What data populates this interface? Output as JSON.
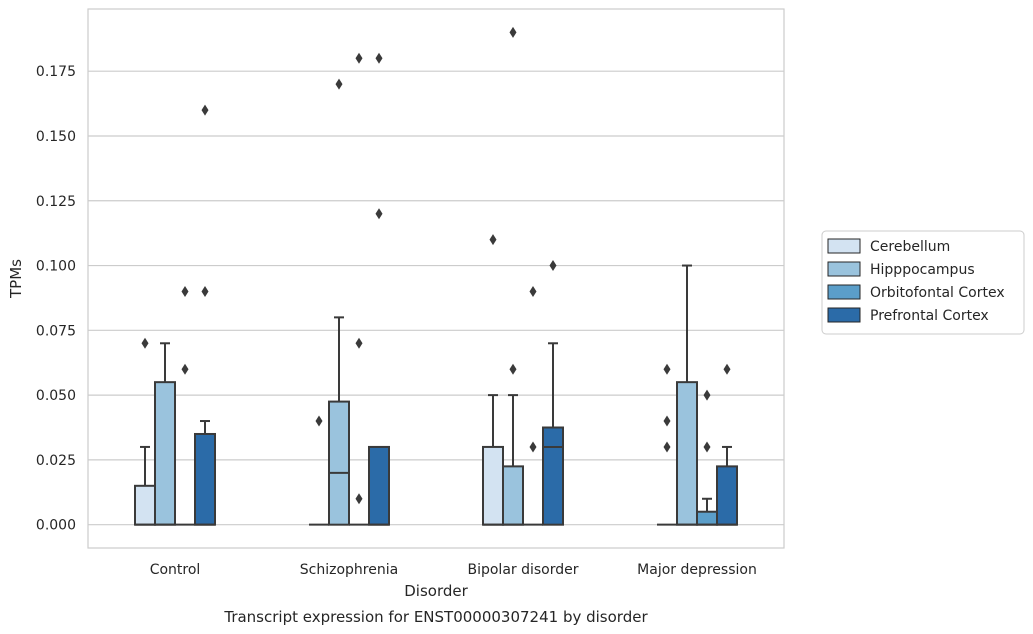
{
  "chart_data": {
    "type": "boxplot",
    "title": "Transcript expression for ENST00000307241 by disorder",
    "xlabel": "Disorder",
    "ylabel": "TPMs",
    "ylim": [
      -0.009,
      0.199
    ],
    "yticks": [
      "0.000",
      "0.025",
      "0.050",
      "0.075",
      "0.100",
      "0.125",
      "0.150",
      "0.175"
    ],
    "grid": "horizontal",
    "legend_position": "right",
    "categories": [
      "Control",
      "Schizophrenia",
      "Bipolar disorder",
      "Major depression"
    ],
    "series": [
      {
        "name": "Cerebellum",
        "color": "#d3e3f2",
        "boxes": [
          {
            "q1": 0.0,
            "median": 0.0,
            "q3": 0.015,
            "whisker_low": 0.0,
            "whisker_high": 0.03,
            "outliers": [
              0.07
            ]
          },
          {
            "q1": 0.0,
            "median": 0.0,
            "q3": 0.0,
            "whisker_low": 0.0,
            "whisker_high": 0.0,
            "outliers": [
              0.04
            ]
          },
          {
            "q1": 0.0,
            "median": 0.0,
            "q3": 0.03,
            "whisker_low": 0.0,
            "whisker_high": 0.05,
            "outliers": [
              0.11
            ]
          },
          {
            "q1": 0.0,
            "median": 0.0,
            "q3": 0.0,
            "whisker_low": 0.0,
            "whisker_high": 0.0,
            "outliers": [
              0.03,
              0.04,
              0.06
            ]
          }
        ]
      },
      {
        "name": "Hipppocampus",
        "color": "#9ac3dd",
        "boxes": [
          {
            "q1": 0.0,
            "median": 0.0,
            "q3": 0.055,
            "whisker_low": 0.0,
            "whisker_high": 0.07,
            "outliers": []
          },
          {
            "q1": 0.0,
            "median": 0.02,
            "q3": 0.0475,
            "whisker_low": 0.0,
            "whisker_high": 0.08,
            "outliers": [
              0.17
            ]
          },
          {
            "q1": 0.0,
            "median": 0.0,
            "q3": 0.0225,
            "whisker_low": 0.0,
            "whisker_high": 0.05,
            "outliers": [
              0.06,
              0.19
            ]
          },
          {
            "q1": 0.0,
            "median": 0.0,
            "q3": 0.055,
            "whisker_low": 0.0,
            "whisker_high": 0.1,
            "outliers": []
          }
        ]
      },
      {
        "name": "Orbitofontal Cortex",
        "color": "#5b9ec9",
        "boxes": [
          {
            "q1": 0.0,
            "median": 0.0,
            "q3": 0.0,
            "whisker_low": 0.0,
            "whisker_high": 0.0,
            "outliers": [
              0.06,
              0.09
            ]
          },
          {
            "q1": 0.0,
            "median": 0.0,
            "q3": 0.0,
            "whisker_low": 0.0,
            "whisker_high": 0.0,
            "outliers": [
              0.01,
              0.07,
              0.18
            ]
          },
          {
            "q1": 0.0,
            "median": 0.0,
            "q3": 0.0,
            "whisker_low": 0.0,
            "whisker_high": 0.0,
            "outliers": [
              0.03,
              0.09
            ]
          },
          {
            "q1": 0.0,
            "median": 0.0,
            "q3": 0.005,
            "whisker_low": 0.0,
            "whisker_high": 0.01,
            "outliers": [
              0.03,
              0.05
            ]
          }
        ]
      },
      {
        "name": "Prefrontal Cortex",
        "color": "#2b6ba8",
        "boxes": [
          {
            "q1": 0.0,
            "median": 0.0,
            "q3": 0.035,
            "whisker_low": 0.0,
            "whisker_high": 0.04,
            "outliers": [
              0.09,
              0.16
            ]
          },
          {
            "q1": 0.0,
            "median": 0.0,
            "q3": 0.03,
            "whisker_low": 0.0,
            "whisker_high": 0.03,
            "outliers": [
              0.12,
              0.18
            ]
          },
          {
            "q1": 0.0,
            "median": 0.03,
            "q3": 0.0375,
            "whisker_low": 0.0,
            "whisker_high": 0.07,
            "outliers": [
              0.1
            ]
          },
          {
            "q1": 0.0,
            "median": 0.0,
            "q3": 0.0225,
            "whisker_low": 0.0,
            "whisker_high": 0.03,
            "outliers": [
              0.06
            ]
          }
        ]
      }
    ]
  }
}
